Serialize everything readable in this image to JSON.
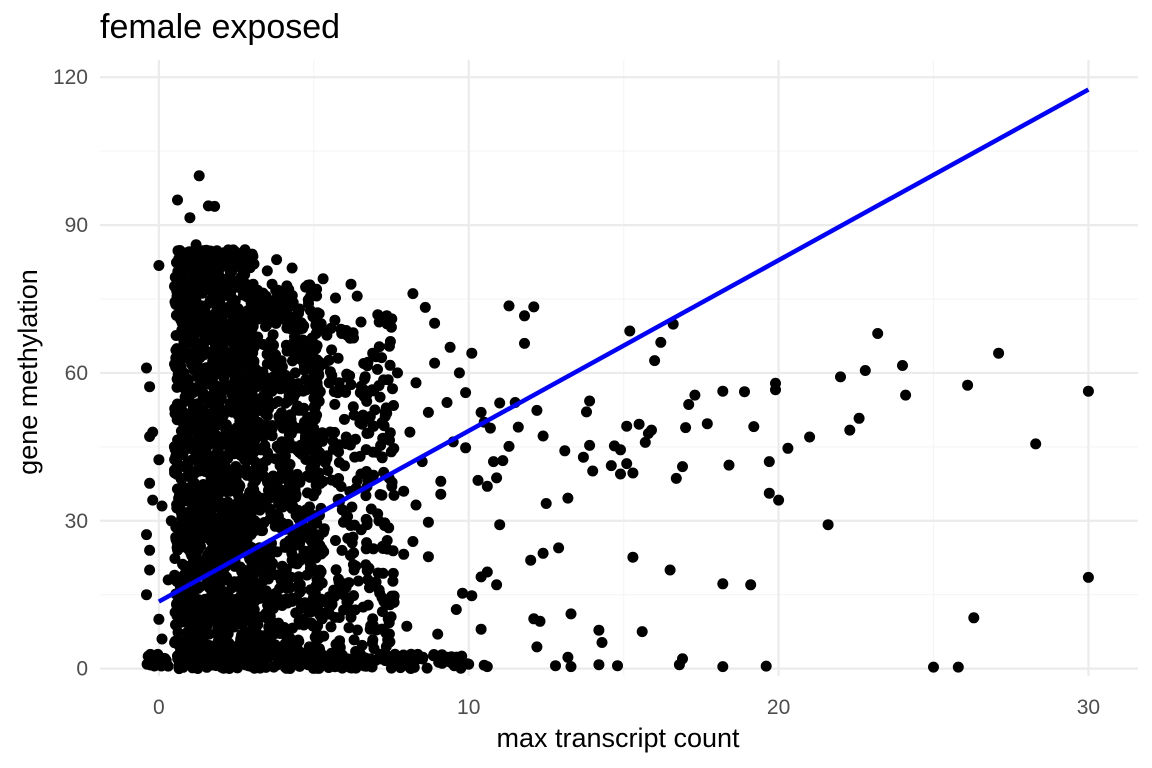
{
  "chart_data": {
    "type": "scatter",
    "title": "female exposed",
    "xlabel": "max transcript count",
    "ylabel": "gene methylation",
    "xlim": [
      -1.9,
      31.6
    ],
    "ylim": [
      -1.5,
      123.5
    ],
    "x_ticks": [
      0,
      10,
      20,
      30
    ],
    "y_ticks": [
      0,
      30,
      60,
      90,
      120
    ],
    "grid": true,
    "background": "#ffffff",
    "grid_major_color": "#ebebeb",
    "grid_minor_color": "#f5f5f5",
    "point_color": "#000000",
    "line_color": "#0000ff",
    "fit_line": {
      "x": [
        0,
        30
      ],
      "y": [
        13.6,
        117.5
      ]
    },
    "series": [
      {
        "values": [
          [
            30.0,
            56.3
          ],
          [
            30.0,
            18.5
          ],
          [
            28.3,
            45.6
          ],
          [
            27.1,
            64.0
          ],
          [
            26.3,
            10.3
          ],
          [
            26.1,
            57.5
          ],
          [
            25.8,
            0.3
          ],
          [
            25.0,
            0.3
          ],
          [
            24.1,
            55.5
          ],
          [
            24.0,
            61.5
          ],
          [
            23.2,
            68.0
          ],
          [
            22.8,
            60.5
          ],
          [
            22.6,
            50.8
          ],
          [
            22.3,
            48.4
          ],
          [
            22.0,
            59.2
          ],
          [
            21.6,
            29.2
          ],
          [
            21.0,
            47.0
          ],
          [
            20.3,
            44.7
          ],
          [
            20.0,
            34.2
          ],
          [
            19.9,
            57.9
          ],
          [
            19.9,
            56.6
          ],
          [
            19.7,
            35.6
          ],
          [
            19.7,
            42.0
          ],
          [
            19.6,
            0.5
          ],
          [
            19.2,
            49.1
          ],
          [
            19.1,
            17.0
          ],
          [
            18.9,
            56.2
          ],
          [
            18.4,
            41.3
          ],
          [
            18.2,
            56.3
          ],
          [
            18.2,
            17.2
          ],
          [
            18.2,
            0.4
          ],
          [
            17.7,
            49.7
          ],
          [
            17.3,
            55.5
          ],
          [
            17.1,
            53.6
          ],
          [
            17.0,
            48.9
          ],
          [
            16.9,
            41.0
          ],
          [
            16.9,
            2.0
          ],
          [
            16.8,
            0.8
          ],
          [
            16.7,
            38.6
          ],
          [
            16.6,
            69.9
          ],
          [
            16.5,
            20.0
          ],
          [
            16.2,
            66.2
          ],
          [
            16.0,
            62.5
          ],
          [
            15.9,
            48.4
          ],
          [
            15.8,
            47.7
          ],
          [
            15.7,
            45.9
          ],
          [
            15.6,
            7.5
          ],
          [
            15.5,
            49.6
          ],
          [
            15.1,
            49.2
          ],
          [
            15.2,
            68.5
          ],
          [
            15.3,
            39.7
          ],
          [
            15.3,
            22.6
          ],
          [
            15.1,
            41.6
          ],
          [
            14.9,
            44.4
          ],
          [
            14.9,
            39.5
          ],
          [
            14.8,
            0.6
          ],
          [
            14.7,
            45.2
          ],
          [
            14.6,
            41.2
          ],
          [
            14.3,
            5.3
          ],
          [
            14.2,
            7.8
          ],
          [
            14.2,
            0.8
          ],
          [
            14.0,
            40.1
          ],
          [
            13.9,
            54.3
          ],
          [
            13.9,
            45.3
          ],
          [
            13.8,
            52.1
          ],
          [
            13.7,
            42.9
          ],
          [
            13.3,
            11.1
          ],
          [
            13.2,
            34.6
          ],
          [
            13.3,
            0.4
          ],
          [
            13.2,
            2.3
          ],
          [
            13.1,
            44.2
          ],
          [
            12.9,
            24.5
          ],
          [
            12.8,
            0.6
          ],
          [
            12.5,
            33.5
          ],
          [
            12.4,
            47.2
          ],
          [
            12.4,
            23.4
          ],
          [
            12.3,
            9.6
          ],
          [
            12.2,
            4.4
          ],
          [
            12.1,
            10.1
          ],
          [
            12.0,
            22.0
          ],
          [
            12.2,
            52.4
          ],
          [
            11.6,
            49.0
          ],
          [
            11.8,
            66.0
          ],
          [
            11.3,
            45.1
          ],
          [
            11.1,
            42.2
          ],
          [
            11.0,
            29.2
          ],
          [
            11.0,
            53.9
          ],
          [
            10.9,
            38.7
          ],
          [
            10.6,
            0.4
          ],
          [
            10.5,
            0.7
          ],
          [
            10.4,
            8.0
          ],
          [
            10.0,
            0.9
          ],
          [
            10.4,
            18.6
          ],
          [
            10.6,
            19.6
          ],
          [
            10.9,
            17.0
          ],
          [
            10.3,
            38.2
          ],
          [
            10.8,
            42.0
          ],
          [
            11.3,
            73.6
          ],
          [
            12.1,
            73.4
          ],
          [
            11.8,
            71.6
          ],
          [
            10.6,
            37.0
          ],
          [
            9.9,
            44.8
          ],
          [
            9.8,
            15.3
          ],
          [
            9.6,
            12.0
          ],
          [
            10.1,
            14.8
          ],
          [
            10.5,
            50.0
          ],
          [
            10.7,
            48.8
          ],
          [
            11.5,
            54.0
          ],
          [
            9.3,
            2.3
          ],
          [
            9.1,
            35.4
          ],
          [
            9.0,
            7.0
          ],
          [
            8.7,
            22.7
          ],
          [
            8.7,
            29.7
          ],
          [
            8.3,
            33.2
          ],
          [
            8.0,
            8.6
          ],
          [
            7.7,
            0.9
          ],
          [
            7.4,
            10.1
          ],
          [
            7.2,
            14.4
          ],
          [
            7.0,
            1.7
          ],
          [
            6.9,
            10.1
          ],
          [
            6.5,
            3.0
          ],
          [
            6.2,
            10.4
          ],
          [
            5.5,
            14.6
          ],
          [
            5.1,
            7.1
          ],
          [
            5.0,
            4.5
          ],
          [
            7.9,
            23.2
          ],
          [
            8.2,
            25.8
          ],
          [
            8.2,
            76.1
          ],
          [
            8.6,
            73.3
          ],
          [
            8.9,
            70.1
          ],
          [
            9.4,
            65.2
          ],
          [
            6.2,
            78.0
          ],
          [
            5.3,
            79.1
          ],
          [
            4.3,
            81.3
          ],
          [
            5.7,
            75.2
          ],
          [
            6.4,
            75.6
          ],
          [
            3.8,
            83.0
          ],
          [
            3.5,
            80.7
          ],
          [
            2.7,
            81.0
          ],
          [
            1.6,
            93.9
          ],
          [
            1.8,
            93.8
          ],
          [
            0.6,
            95.1
          ],
          [
            1.3,
            100.0
          ],
          [
            1.0,
            91.5
          ],
          [
            -0.4,
            61.0
          ],
          [
            -0.3,
            57.2
          ],
          [
            -0.3,
            47.1
          ],
          [
            -0.2,
            48.0
          ],
          [
            0.0,
            42.4
          ],
          [
            -0.3,
            37.6
          ],
          [
            -0.2,
            34.2
          ],
          [
            0.1,
            33.0
          ],
          [
            0.0,
            81.8
          ],
          [
            -0.4,
            27.2
          ],
          [
            -0.3,
            24.0
          ],
          [
            -0.3,
            20.0
          ],
          [
            -0.4,
            15.0
          ],
          [
            0.0,
            10.0
          ],
          [
            0.1,
            6.0
          ],
          [
            0.2,
            2.0
          ],
          [
            0.3,
            0.5
          ],
          [
            0.5,
            45.0
          ],
          [
            0.4,
            30.0
          ],
          [
            0.3,
            18.0
          ],
          [
            0.6,
            12.0
          ],
          [
            0.8,
            52.0
          ],
          [
            0.9,
            68.0
          ],
          [
            1.1,
            74.0
          ],
          [
            1.2,
            86.0
          ],
          [
            1.4,
            58.0
          ],
          [
            1.5,
            40.0
          ],
          [
            1.7,
            24.0
          ],
          [
            1.9,
            8.0
          ],
          [
            2.1,
            72.0
          ],
          [
            2.3,
            36.0
          ],
          [
            2.5,
            62.0
          ],
          [
            2.7,
            14.0
          ],
          [
            2.9,
            48.0
          ],
          [
            3.1,
            66.0
          ],
          [
            3.3,
            28.0
          ],
          [
            3.5,
            54.0
          ],
          [
            3.7,
            4.0
          ],
          [
            3.9,
            60.0
          ],
          [
            4.1,
            42.0
          ],
          [
            4.3,
            22.0
          ],
          [
            4.5,
            70.0
          ],
          [
            4.7,
            50.0
          ],
          [
            4.9,
            16.0
          ],
          [
            5.1,
            62.0
          ],
          [
            5.3,
            38.0
          ],
          [
            5.5,
            58.0
          ],
          [
            5.7,
            26.0
          ],
          [
            5.9,
            68.0
          ],
          [
            6.1,
            46.0
          ],
          [
            6.3,
            20.0
          ],
          [
            6.5,
            56.0
          ],
          [
            6.7,
            40.0
          ],
          [
            6.9,
            64.0
          ],
          [
            7.1,
            30.0
          ],
          [
            7.3,
            52.0
          ],
          [
            7.5,
            44.0
          ],
          [
            7.7,
            60.0
          ],
          [
            7.9,
            36.0
          ],
          [
            8.1,
            48.0
          ],
          [
            8.3,
            58.0
          ],
          [
            8.5,
            42.0
          ],
          [
            8.7,
            52.0
          ],
          [
            8.9,
            62.0
          ],
          [
            9.1,
            38.0
          ],
          [
            9.3,
            54.0
          ],
          [
            9.5,
            46.0
          ],
          [
            9.7,
            60.0
          ],
          [
            9.9,
            56.0
          ],
          [
            10.1,
            64.0
          ],
          [
            10.4,
            52.0
          ]
        ]
      }
    ]
  }
}
